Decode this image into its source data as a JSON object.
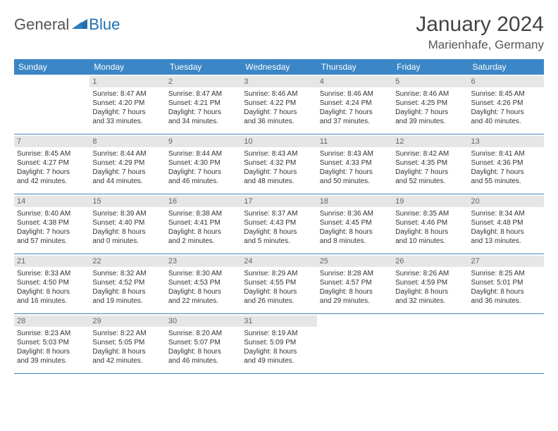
{
  "logo": {
    "part1": "General",
    "part2": "Blue"
  },
  "title": "January 2024",
  "location": "Marienhafe, Germany",
  "colors": {
    "header_bg": "#3b86c6",
    "header_text": "#ffffff",
    "daynum_bg": "#e6e6e6",
    "daynum_text": "#666666",
    "body_text": "#333333",
    "rule": "#3b86c6",
    "logo_gray": "#555555",
    "logo_blue": "#1f6fb2",
    "background": "#ffffff"
  },
  "typography": {
    "title_fontsize": 30,
    "location_fontsize": 17,
    "header_fontsize": 12,
    "daynum_fontsize": 11,
    "body_fontsize": 10,
    "logo_fontsize": 22
  },
  "day_names": [
    "Sunday",
    "Monday",
    "Tuesday",
    "Wednesday",
    "Thursday",
    "Friday",
    "Saturday"
  ],
  "weeks": [
    [
      {
        "n": "",
        "sr": "",
        "ss": "",
        "dl1": "",
        "dl2": ""
      },
      {
        "n": "1",
        "sr": "Sunrise: 8:47 AM",
        "ss": "Sunset: 4:20 PM",
        "dl1": "Daylight: 7 hours",
        "dl2": "and 33 minutes."
      },
      {
        "n": "2",
        "sr": "Sunrise: 8:47 AM",
        "ss": "Sunset: 4:21 PM",
        "dl1": "Daylight: 7 hours",
        "dl2": "and 34 minutes."
      },
      {
        "n": "3",
        "sr": "Sunrise: 8:46 AM",
        "ss": "Sunset: 4:22 PM",
        "dl1": "Daylight: 7 hours",
        "dl2": "and 36 minutes."
      },
      {
        "n": "4",
        "sr": "Sunrise: 8:46 AM",
        "ss": "Sunset: 4:24 PM",
        "dl1": "Daylight: 7 hours",
        "dl2": "and 37 minutes."
      },
      {
        "n": "5",
        "sr": "Sunrise: 8:46 AM",
        "ss": "Sunset: 4:25 PM",
        "dl1": "Daylight: 7 hours",
        "dl2": "and 39 minutes."
      },
      {
        "n": "6",
        "sr": "Sunrise: 8:45 AM",
        "ss": "Sunset: 4:26 PM",
        "dl1": "Daylight: 7 hours",
        "dl2": "and 40 minutes."
      }
    ],
    [
      {
        "n": "7",
        "sr": "Sunrise: 8:45 AM",
        "ss": "Sunset: 4:27 PM",
        "dl1": "Daylight: 7 hours",
        "dl2": "and 42 minutes."
      },
      {
        "n": "8",
        "sr": "Sunrise: 8:44 AM",
        "ss": "Sunset: 4:29 PM",
        "dl1": "Daylight: 7 hours",
        "dl2": "and 44 minutes."
      },
      {
        "n": "9",
        "sr": "Sunrise: 8:44 AM",
        "ss": "Sunset: 4:30 PM",
        "dl1": "Daylight: 7 hours",
        "dl2": "and 46 minutes."
      },
      {
        "n": "10",
        "sr": "Sunrise: 8:43 AM",
        "ss": "Sunset: 4:32 PM",
        "dl1": "Daylight: 7 hours",
        "dl2": "and 48 minutes."
      },
      {
        "n": "11",
        "sr": "Sunrise: 8:43 AM",
        "ss": "Sunset: 4:33 PM",
        "dl1": "Daylight: 7 hours",
        "dl2": "and 50 minutes."
      },
      {
        "n": "12",
        "sr": "Sunrise: 8:42 AM",
        "ss": "Sunset: 4:35 PM",
        "dl1": "Daylight: 7 hours",
        "dl2": "and 52 minutes."
      },
      {
        "n": "13",
        "sr": "Sunrise: 8:41 AM",
        "ss": "Sunset: 4:36 PM",
        "dl1": "Daylight: 7 hours",
        "dl2": "and 55 minutes."
      }
    ],
    [
      {
        "n": "14",
        "sr": "Sunrise: 8:40 AM",
        "ss": "Sunset: 4:38 PM",
        "dl1": "Daylight: 7 hours",
        "dl2": "and 57 minutes."
      },
      {
        "n": "15",
        "sr": "Sunrise: 8:39 AM",
        "ss": "Sunset: 4:40 PM",
        "dl1": "Daylight: 8 hours",
        "dl2": "and 0 minutes."
      },
      {
        "n": "16",
        "sr": "Sunrise: 8:38 AM",
        "ss": "Sunset: 4:41 PM",
        "dl1": "Daylight: 8 hours",
        "dl2": "and 2 minutes."
      },
      {
        "n": "17",
        "sr": "Sunrise: 8:37 AM",
        "ss": "Sunset: 4:43 PM",
        "dl1": "Daylight: 8 hours",
        "dl2": "and 5 minutes."
      },
      {
        "n": "18",
        "sr": "Sunrise: 8:36 AM",
        "ss": "Sunset: 4:45 PM",
        "dl1": "Daylight: 8 hours",
        "dl2": "and 8 minutes."
      },
      {
        "n": "19",
        "sr": "Sunrise: 8:35 AM",
        "ss": "Sunset: 4:46 PM",
        "dl1": "Daylight: 8 hours",
        "dl2": "and 10 minutes."
      },
      {
        "n": "20",
        "sr": "Sunrise: 8:34 AM",
        "ss": "Sunset: 4:48 PM",
        "dl1": "Daylight: 8 hours",
        "dl2": "and 13 minutes."
      }
    ],
    [
      {
        "n": "21",
        "sr": "Sunrise: 8:33 AM",
        "ss": "Sunset: 4:50 PM",
        "dl1": "Daylight: 8 hours",
        "dl2": "and 16 minutes."
      },
      {
        "n": "22",
        "sr": "Sunrise: 8:32 AM",
        "ss": "Sunset: 4:52 PM",
        "dl1": "Daylight: 8 hours",
        "dl2": "and 19 minutes."
      },
      {
        "n": "23",
        "sr": "Sunrise: 8:30 AM",
        "ss": "Sunset: 4:53 PM",
        "dl1": "Daylight: 8 hours",
        "dl2": "and 22 minutes."
      },
      {
        "n": "24",
        "sr": "Sunrise: 8:29 AM",
        "ss": "Sunset: 4:55 PM",
        "dl1": "Daylight: 8 hours",
        "dl2": "and 26 minutes."
      },
      {
        "n": "25",
        "sr": "Sunrise: 8:28 AM",
        "ss": "Sunset: 4:57 PM",
        "dl1": "Daylight: 8 hours",
        "dl2": "and 29 minutes."
      },
      {
        "n": "26",
        "sr": "Sunrise: 8:26 AM",
        "ss": "Sunset: 4:59 PM",
        "dl1": "Daylight: 8 hours",
        "dl2": "and 32 minutes."
      },
      {
        "n": "27",
        "sr": "Sunrise: 8:25 AM",
        "ss": "Sunset: 5:01 PM",
        "dl1": "Daylight: 8 hours",
        "dl2": "and 36 minutes."
      }
    ],
    [
      {
        "n": "28",
        "sr": "Sunrise: 8:23 AM",
        "ss": "Sunset: 5:03 PM",
        "dl1": "Daylight: 8 hours",
        "dl2": "and 39 minutes."
      },
      {
        "n": "29",
        "sr": "Sunrise: 8:22 AM",
        "ss": "Sunset: 5:05 PM",
        "dl1": "Daylight: 8 hours",
        "dl2": "and 42 minutes."
      },
      {
        "n": "30",
        "sr": "Sunrise: 8:20 AM",
        "ss": "Sunset: 5:07 PM",
        "dl1": "Daylight: 8 hours",
        "dl2": "and 46 minutes."
      },
      {
        "n": "31",
        "sr": "Sunrise: 8:19 AM",
        "ss": "Sunset: 5:09 PM",
        "dl1": "Daylight: 8 hours",
        "dl2": "and 49 minutes."
      },
      {
        "n": "",
        "sr": "",
        "ss": "",
        "dl1": "",
        "dl2": ""
      },
      {
        "n": "",
        "sr": "",
        "ss": "",
        "dl1": "",
        "dl2": ""
      },
      {
        "n": "",
        "sr": "",
        "ss": "",
        "dl1": "",
        "dl2": ""
      }
    ]
  ]
}
